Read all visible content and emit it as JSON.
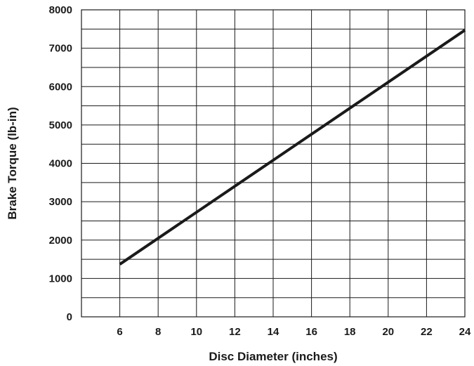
{
  "chart_data": {
    "type": "line",
    "title": "",
    "xlabel": "Disc Diameter (inches)",
    "ylabel": "Brake Torque (lb-in)",
    "xlim": [
      4,
      24
    ],
    "ylim": [
      0,
      8000
    ],
    "x_ticks": [
      6,
      8,
      10,
      12,
      14,
      16,
      18,
      20,
      22,
      24
    ],
    "x_tick_labels": [
      "6",
      "8",
      "10",
      "12",
      "14",
      "16",
      "18",
      "20",
      "22",
      "24"
    ],
    "x_grid_step": 2,
    "y_ticks": [
      0,
      1000,
      2000,
      3000,
      4000,
      5000,
      6000,
      7000,
      8000
    ],
    "y_tick_labels": [
      "0",
      "1000",
      "2000",
      "3000",
      "4000",
      "5000",
      "6000",
      "7000",
      "8000"
    ],
    "y_grid_step": 500,
    "grid": true,
    "legend": "none",
    "series": [
      {
        "x": [
          6,
          24
        ],
        "y": [
          1370,
          7470
        ],
        "color": "#1a1a1a"
      }
    ]
  }
}
